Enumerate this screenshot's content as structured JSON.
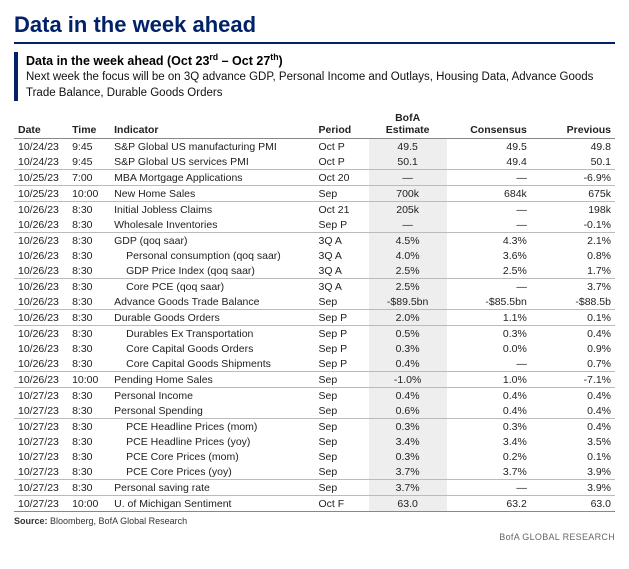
{
  "title": "Data in the week ahead",
  "subtitle_html": "Data in the week ahead (Oct 23<sup>rd</sup> – Oct 27<sup>th</sup>)",
  "description": "Next week the focus will be on 3Q advance GDP, Personal Income and Outlays, Housing Data, Advance Goods Trade Balance, Durable Goods Orders",
  "columns": [
    "Date",
    "Time",
    "Indicator",
    "Period",
    "BofA Estimate",
    "Consensus",
    "Previous"
  ],
  "col_widths_pct": [
    9,
    7,
    34,
    9,
    13,
    14,
    14
  ],
  "highlight_bg": "#eeeeee",
  "rows": [
    {
      "date": "10/24/23",
      "time": "9:45",
      "indicator": "S&P Global US manufacturing PMI",
      "period": "Oct P",
      "bofa": "49.5",
      "consensus": "49.5",
      "previous": "49.8"
    },
    {
      "date": "10/24/23",
      "time": "9:45",
      "indicator": "S&P Global US services PMI",
      "period": "Oct P",
      "bofa": "50.1",
      "consensus": "49.4",
      "previous": "50.1"
    },
    {
      "date": "10/25/23",
      "time": "7:00",
      "indicator": "MBA Mortgage Applications",
      "period": "Oct 20",
      "bofa": "—",
      "consensus": "—",
      "previous": "-6.9%",
      "sep": true
    },
    {
      "date": "10/25/23",
      "time": "10:00",
      "indicator": "New Home Sales",
      "period": "Sep",
      "bofa": "700k",
      "consensus": "684k",
      "previous": "675k",
      "sep": true
    },
    {
      "date": "10/26/23",
      "time": "8:30",
      "indicator": "Initial Jobless Claims",
      "period": "Oct 21",
      "bofa": "205k",
      "consensus": "—",
      "previous": "198k",
      "sep": true
    },
    {
      "date": "10/26/23",
      "time": "8:30",
      "indicator": "Wholesale Inventories",
      "period": "Sep P",
      "bofa": "—",
      "consensus": "—",
      "previous": "-0.1%"
    },
    {
      "date": "10/26/23",
      "time": "8:30",
      "indicator": "GDP (qoq saar)",
      "period": "3Q A",
      "bofa": "4.5%",
      "consensus": "4.3%",
      "previous": "2.1%",
      "sep": true
    },
    {
      "date": "10/26/23",
      "time": "8:30",
      "indicator": "Personal consumption (qoq saar)",
      "period": "3Q A",
      "bofa": "4.0%",
      "consensus": "3.6%",
      "previous": "0.8%",
      "indent": 1
    },
    {
      "date": "10/26/23",
      "time": "8:30",
      "indicator": "GDP Price Index (qoq saar)",
      "period": "3Q A",
      "bofa": "2.5%",
      "consensus": "2.5%",
      "previous": "1.7%",
      "indent": 1
    },
    {
      "date": "10/26/23",
      "time": "8:30",
      "indicator": "Core PCE (qoq saar)",
      "period": "3Q A",
      "bofa": "2.5%",
      "consensus": "—",
      "previous": "3.7%",
      "sep": true,
      "indent": 1
    },
    {
      "date": "10/26/23",
      "time": "8:30",
      "indicator": "Advance Goods Trade Balance",
      "period": "Sep",
      "bofa": "-$89.5bn",
      "consensus": "-$85.5bn",
      "previous": "-$88.5b"
    },
    {
      "date": "10/26/23",
      "time": "8:30",
      "indicator": "Durable Goods Orders",
      "period": "Sep P",
      "bofa": "2.0%",
      "consensus": "1.1%",
      "previous": "0.1%",
      "sep": true
    },
    {
      "date": "10/26/23",
      "time": "8:30",
      "indicator": "Durables Ex Transportation",
      "period": "Sep P",
      "bofa": "0.5%",
      "consensus": "0.3%",
      "previous": "0.4%",
      "sep": true,
      "indent": 1
    },
    {
      "date": "10/26/23",
      "time": "8:30",
      "indicator": "Core Capital Goods Orders",
      "period": "Sep P",
      "bofa": "0.3%",
      "consensus": "0.0%",
      "previous": "0.9%",
      "indent": 1
    },
    {
      "date": "10/26/23",
      "time": "8:30",
      "indicator": "Core Capital Goods Shipments",
      "period": "Sep P",
      "bofa": "0.4%",
      "consensus": "—",
      "previous": "0.7%",
      "indent": 1
    },
    {
      "date": "10/26/23",
      "time": "10:00",
      "indicator": "Pending Home Sales",
      "period": "Sep",
      "bofa": "-1.0%",
      "consensus": "1.0%",
      "previous": "-7.1%",
      "sep": true
    },
    {
      "date": "10/27/23",
      "time": "8:30",
      "indicator": "Personal Income",
      "period": "Sep",
      "bofa": "0.4%",
      "consensus": "0.4%",
      "previous": "0.4%",
      "sep": true
    },
    {
      "date": "10/27/23",
      "time": "8:30",
      "indicator": "Personal Spending",
      "period": "Sep",
      "bofa": "0.6%",
      "consensus": "0.4%",
      "previous": "0.4%"
    },
    {
      "date": "10/27/23",
      "time": "8:30",
      "indicator": "PCE Headline Prices (mom)",
      "period": "Sep",
      "bofa": "0.3%",
      "consensus": "0.3%",
      "previous": "0.4%",
      "sep": true,
      "indent": 1
    },
    {
      "date": "10/27/23",
      "time": "8:30",
      "indicator": "PCE Headline Prices (yoy)",
      "period": "Sep",
      "bofa": "3.4%",
      "consensus": "3.4%",
      "previous": "3.5%",
      "indent": 1
    },
    {
      "date": "10/27/23",
      "time": "8:30",
      "indicator": "PCE Core Prices (mom)",
      "period": "Sep",
      "bofa": "0.3%",
      "consensus": "0.2%",
      "previous": "0.1%",
      "indent": 1
    },
    {
      "date": "10/27/23",
      "time": "8:30",
      "indicator": "PCE Core Prices (yoy)",
      "period": "Sep",
      "bofa": "3.7%",
      "consensus": "3.7%",
      "previous": "3.9%",
      "indent": 1
    },
    {
      "date": "10/27/23",
      "time": "8:30",
      "indicator": "Personal saving rate",
      "period": "Sep",
      "bofa": "3.7%",
      "consensus": "—",
      "previous": "3.9%",
      "sep": true
    },
    {
      "date": "10/27/23",
      "time": "10:00",
      "indicator": "U. of Michigan Sentiment",
      "period": "Oct F",
      "bofa": "63.0",
      "consensus": "63.2",
      "previous": "63.0",
      "sep": true
    }
  ],
  "source_label": "Source:",
  "source_text": "Bloomberg, BofA Global Research",
  "footer_brand": "BofA GLOBAL RESEARCH"
}
